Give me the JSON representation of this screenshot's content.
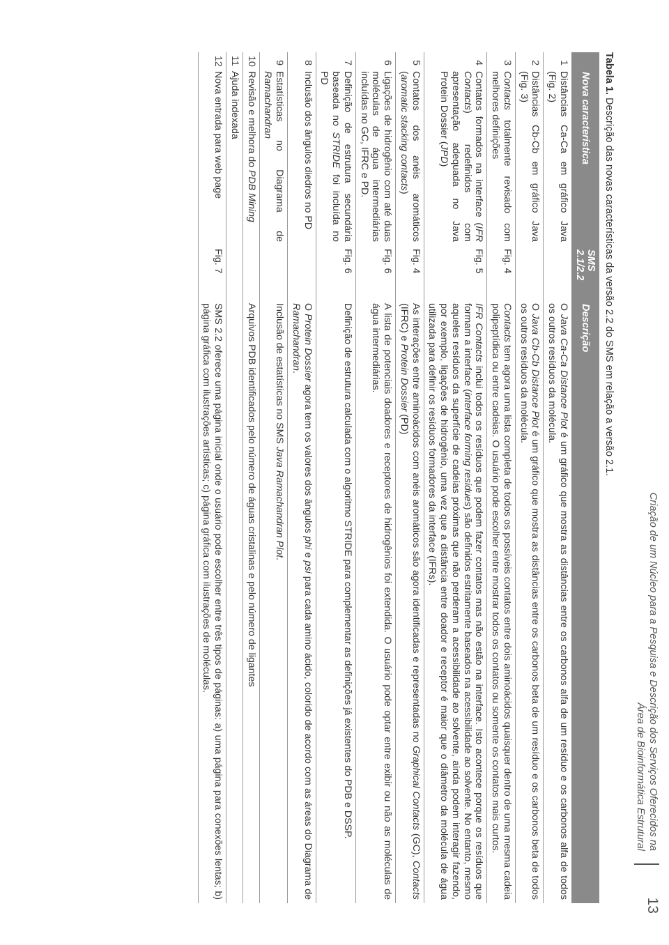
{
  "page_number": "13",
  "running_head_line1": "Criação de um Núcleo para a Pesquisa e Descrição dos Serviços Oferecidos na",
  "running_head_line2": "Área de Bioinformática Estrutural",
  "caption_bold": "Tabela 1.",
  "caption_rest": " Descrição das novas características da versão 2.2 do SMS em relação a versão 2.1.",
  "header": {
    "num": "",
    "feature": "Nova característica",
    "fig": "SMS 2.1/2.2",
    "desc": "Descrição"
  },
  "rows": [
    {
      "n": "1",
      "feature": "Distâncias Ca-Ca em gráfico Java (Fig. 2)",
      "fig": "",
      "desc": "O <span class=\"it\">Java Ca-Ca Distance Plot</span> é um gráfico que mostra as distâncias entre os carbonos alfa de um resíduo e os carbonos alfa de todos os outros resíduos da molécula."
    },
    {
      "n": "2",
      "feature": "Distâncias Cb-Cb em gráfico Java (Fig. 3)",
      "fig": "",
      "desc": "O <span class=\"it\">Java Cb-Cb Distance Plot</span> é um gráfico que mostra as distâncias entre os carbonos beta de um resíduo e os carbonos beta de todos os outros resíduos da molécula."
    },
    {
      "n": "3",
      "feature": "<span class=\"it\">Contacts</span> totalmente revisado com melhores definições",
      "fig": "Fig. 4",
      "desc": "<span class=\"it\">Contacts</span> tem agora uma lista completa de todos os possíveis contatos entre dois aminoácidos quaisquer dentro de uma mesma cadeia polipeptídica ou entre cadeias. O usuário pode escolher entre mostrar todos os contatos ou somente os contatos mais curtos."
    },
    {
      "n": "4",
      "feature": "Contatos formados na interface (<span class=\"it\">IFR Contacts</span>) redefinidos com apresentação adequada no Java Protein Dossier (<span class=\"it\">JPD</span>)",
      "fig": "Fig. 5",
      "desc": "<span class=\"it\">IFR Contacts</span> inclui todos os resíduos que podem fazer contatos mas não estão na interface. Isto acontece porque os resíduos que formam a interface (<span class=\"it\">interface forming residues</span>) são definidos estritamente baseados na acessibilidade ao solvente. No entanto, mesmo aqueles resíduos da superfície de cadeias próximas que não perderam a acessibilidade ao solvente, ainda podem interagir fazendo, por exemplo, ligações de hidrogênio, uma vez que a distância entre doador e receptor é maior que o diâmetro da molécula de água utilizada para definir os resíduos formadores da interface (IFRs)."
    },
    {
      "n": "5",
      "feature": "Contatos dos anéis aromáticos (<span class=\"it\">aromatic stacking contacts</span>)",
      "fig": "Fig. 4",
      "desc": "As interações entre aminoácidos com anéis aromáticos são agora identificadas e representadas no <span class=\"it\">Graphical Contacts</span> (GC), <span class=\"it\">Contacts</span> (IFRC) e <span class=\"it\">Protein Dossier</span> (PD)"
    },
    {
      "n": "6",
      "feature": "Ligações de hidrogênio com até duas moléculas de água intermediárias incluídas no GC, IFRC e PD.",
      "fig": "Fig. 6",
      "desc": "A lista de potenciais doadores e receptores de hidrogênios foi extendida. O usuário pode optar entre exibir ou não as moléculas de água intermediárias."
    },
    {
      "n": "7",
      "feature": "Definição de estrutura secundária baseada no <span class=\"it\">STRIDE</span> foi incluída no PD",
      "fig": "Fig. 6",
      "desc": "Definição de estrutura calculada com o algoritmo STRIDE para complementar as definições já existentes do PDB e DSSP."
    },
    {
      "n": "8",
      "feature": "Inclusão dos ângulos diedros no PD",
      "fig": "",
      "desc": "O <span class=\"it\">Protein Dossier</span> agora tem os valores dos ângulos <span class=\"it\">phi</span> e <span class=\"it\">psi</span> para cada amino ácido, colorido de acordo com as áreas do Diagrama de <span class=\"it\">Ramachandran</span>."
    },
    {
      "n": "9",
      "feature": "Estatísticas no Diagrama de <span class=\"it\">Ramachandran</span>",
      "fig": "",
      "desc": "Inclusão de estatísticas no SMS <span class=\"it\">Java Ramachandran Plot</span>."
    },
    {
      "n": "10",
      "feature": "Revisão e melhora do <span class=\"it\">PDB Mining</span>",
      "fig": "",
      "desc": "Arquivos PDB identificados pelo número de águas cristalinas e pelo número de ligantes"
    },
    {
      "n": "11",
      "feature": "Ajuda indexada",
      "fig": "",
      "desc": ""
    },
    {
      "n": "12",
      "feature": "Nova entrada para web page",
      "fig": "Fig. 7",
      "desc": "SMS 2.2 oferece uma página inicial onde o usuário pode escolher entre três tipos de páginas: a) uma página para conexões lentas; b) página gráfica com ilustrações artísticas; c) página gráfica com ilustrações de moléculas."
    }
  ]
}
